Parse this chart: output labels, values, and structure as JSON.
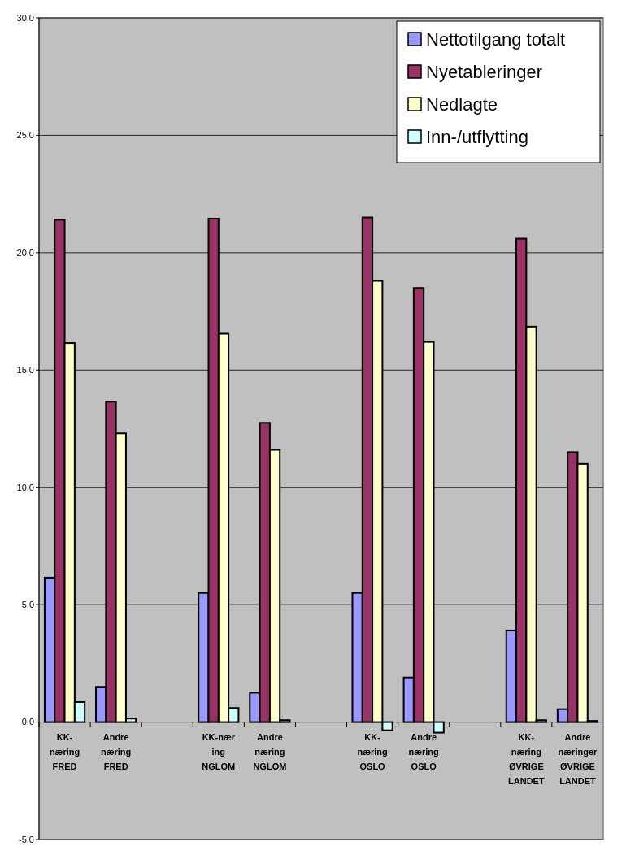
{
  "chart_data": {
    "type": "bar",
    "categories": [
      "KK-\nnæring\nFRED",
      "Andre\nnæring\nFRED",
      null,
      "KK-nær\ning\nNGLOM",
      "Andre\nnæring\nNGLOM",
      null,
      "KK-\nnæring\nOSLO",
      "Andre\nnæring\nOSLO",
      null,
      "KK-\nnæring\nØVRIGE\nLANDET",
      "Andre\nnæringer\nØVRIGE\nLANDET"
    ],
    "series": [
      {
        "name": "Nettotilgang totalt",
        "color": "#9999ff",
        "values": [
          6.15,
          1.5,
          null,
          5.5,
          1.25,
          null,
          5.5,
          1.9,
          null,
          3.9,
          0.55
        ]
      },
      {
        "name": "Nyetableringer",
        "color": "#993366",
        "values": [
          21.4,
          13.65,
          null,
          21.45,
          12.75,
          null,
          21.5,
          18.5,
          null,
          20.6,
          11.5
        ]
      },
      {
        "name": "Nedlagte",
        "color": "#ffffcc",
        "values": [
          16.15,
          12.3,
          null,
          16.55,
          11.6,
          null,
          18.8,
          16.2,
          null,
          16.85,
          11.0
        ]
      },
      {
        "name": "Inn-/utflytting",
        "color": "#ccffff",
        "values": [
          0.85,
          0.15,
          null,
          0.6,
          0.08,
          null,
          -0.35,
          -0.45,
          null,
          0.08,
          0.05
        ]
      }
    ],
    "ylim": [
      -5,
      30
    ],
    "yticks": [
      {
        "value": -5,
        "label": "-5,0"
      },
      {
        "value": 0,
        "label": "0,0"
      },
      {
        "value": 5,
        "label": "5,0"
      },
      {
        "value": 10,
        "label": "10,0"
      },
      {
        "value": 15,
        "label": "15,0"
      },
      {
        "value": 20,
        "label": "20,0"
      },
      {
        "value": 25,
        "label": "25,0"
      },
      {
        "value": 30,
        "label": "30,0"
      }
    ],
    "grid": "y",
    "legend": "top right"
  }
}
